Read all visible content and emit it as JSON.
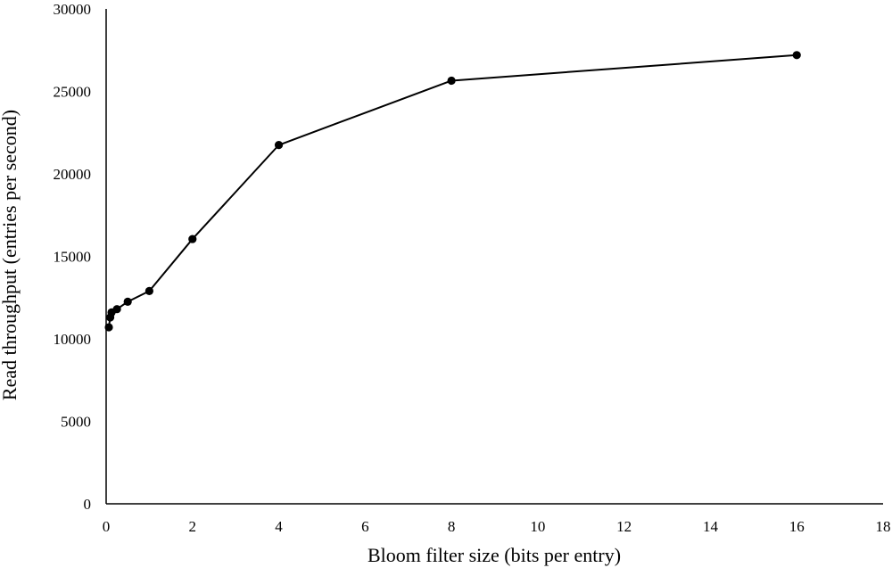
{
  "chart_data": {
    "type": "line",
    "title": "",
    "xlabel": "Bloom filter size (bits per entry)",
    "ylabel": "Read throughput (entries per second)",
    "xlim": [
      0,
      18
    ],
    "ylim": [
      0,
      30000
    ],
    "x_ticks": [
      0,
      2,
      4,
      6,
      8,
      10,
      12,
      14,
      16,
      18
    ],
    "y_ticks": [
      0,
      5000,
      10000,
      15000,
      20000,
      25000,
      30000
    ],
    "grid": false,
    "legend": "none",
    "line_color": "#000000",
    "marker_color": "#000000",
    "series": [
      {
        "x": [
          0.0625,
          0.09375,
          0.125,
          0.25,
          0.5,
          1,
          2,
          4,
          8,
          16
        ],
        "y": [
          10700,
          11300,
          11600,
          11800,
          12250,
          12900,
          16050,
          21750,
          25650,
          27200
        ]
      }
    ]
  }
}
